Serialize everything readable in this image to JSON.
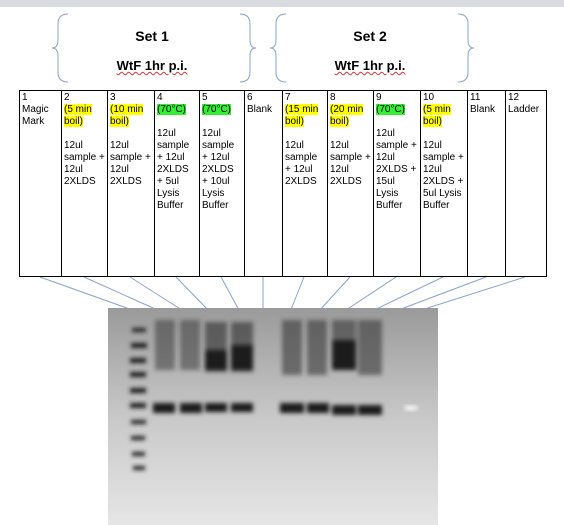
{
  "sets": [
    {
      "title": "Set 1",
      "subtitle": "WtF 1hr p.i."
    },
    {
      "title": "Set 2",
      "subtitle": "WtF 1hr p.i."
    }
  ],
  "table": {
    "columns": [
      {
        "number": "1",
        "label": "Magic Mark"
      },
      {
        "number": "2",
        "condition": "(5 min boil)",
        "highlight": "#ffff00",
        "recipe": "12ul sample + 12ul 2XLDS"
      },
      {
        "number": "3",
        "condition": "(10 min boil)",
        "highlight": "#ffff00",
        "recipe": "12ul sample + 12ul 2XLDS"
      },
      {
        "number": "4",
        "condition": "(70°C)",
        "highlight": "#33ee33",
        "recipe": "12ul sample + 12ul 2XLDS + 5ul Lysis Buffer"
      },
      {
        "number": "5",
        "condition": "(70°C)",
        "highlight": "#33ee33",
        "recipe": "12ul sample + 12ul 2XLDS + 10ul Lysis Buffer"
      },
      {
        "number": "6",
        "label": "Blank"
      },
      {
        "number": "7",
        "condition": "(15 min boil)",
        "highlight": "#ffff00",
        "recipe": "12ul sample + 12ul 2XLDS"
      },
      {
        "number": "8",
        "condition": "(20 min boil)",
        "highlight": "#ffff00",
        "recipe": "12ul sample + 12ul 2XLDS"
      },
      {
        "number": "9",
        "condition": "(70°C)",
        "highlight": "#33ee33",
        "recipe": "12ul sample + 12ul 2XLDS + 15ul Lysis Buffer"
      },
      {
        "number": "10",
        "condition": "(5 min boil)",
        "highlight": "#ffff00",
        "recipe": "12ul sample + 12ul 2XLDS + 5ul Lysis Buffer"
      },
      {
        "number": "11",
        "label": "Blank"
      },
      {
        "number": "12",
        "label": "Ladder"
      }
    ]
  }
}
